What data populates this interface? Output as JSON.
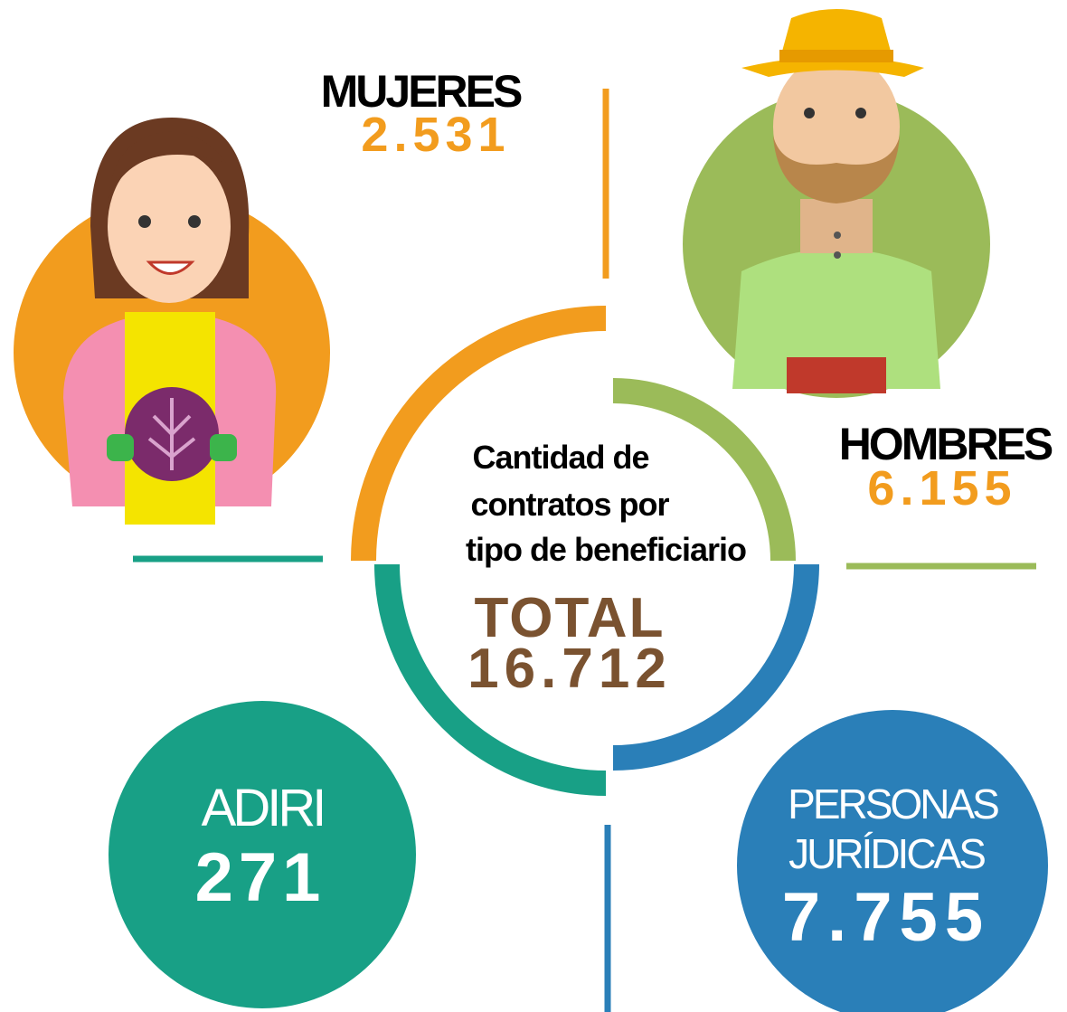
{
  "title": {
    "lines": [
      "Cantidad de",
      "contratos por",
      "tipo de beneficiario"
    ]
  },
  "total": {
    "label": "TOTAL",
    "value": "16.712"
  },
  "groups": [
    {
      "label": "MUJERES",
      "value": "2.531"
    },
    {
      "label": "HOMBRES",
      "value": "6.155"
    },
    {
      "label": "ADIRI",
      "value": "271"
    },
    {
      "label_lines": [
        "PERSONAS",
        "JURÍDICAS"
      ],
      "value": "7.755"
    }
  ]
}
